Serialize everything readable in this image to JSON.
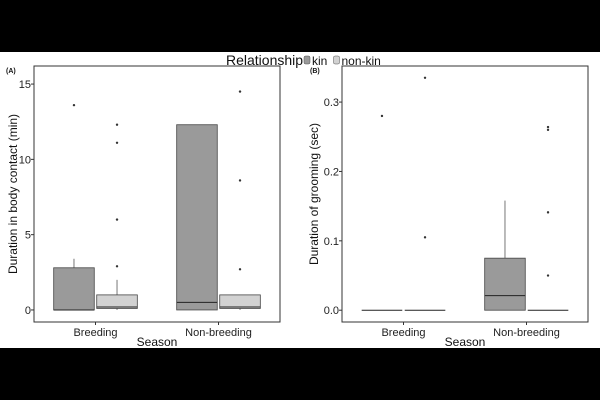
{
  "chart_data": {
    "type": "boxplot",
    "legend": {
      "title": "Relationship",
      "placement": "top-center",
      "entries": [
        {
          "label": "kin",
          "color": "#9a9a9a"
        },
        {
          "label": "non-kin",
          "color": "#d2d2d2"
        }
      ]
    },
    "panels": [
      {
        "id": "A",
        "panel_label": "(A)",
        "xlabel": "Season",
        "ylabel": "Duration in body contact (min)",
        "ylim": [
          -0.8,
          16.2
        ],
        "yticks": [
          0,
          5,
          10,
          15
        ],
        "categories": [
          "Breeding",
          "Non-breeding"
        ],
        "boxes": [
          {
            "category": "Breeding",
            "group": "kin",
            "min": 0,
            "q1": 0,
            "median": 0,
            "q3": 2.8,
            "max": 3.4,
            "outliers": [
              13.6
            ]
          },
          {
            "category": "Breeding",
            "group": "non-kin",
            "min": 0,
            "q1": 0.1,
            "median": 0.2,
            "q3": 1.0,
            "max": 2.0,
            "outliers": [
              2.9,
              6.0,
              11.1,
              12.3
            ]
          },
          {
            "category": "Non-breeding",
            "group": "kin",
            "min": 0,
            "q1": 0,
            "median": 0.5,
            "q3": 12.3,
            "max": 12.3,
            "outliers": []
          },
          {
            "category": "Non-breeding",
            "group": "non-kin",
            "min": 0,
            "q1": 0.1,
            "median": 0.2,
            "q3": 1.0,
            "max": 1.0,
            "outliers": [
              2.7,
              8.6,
              14.5
            ]
          }
        ]
      },
      {
        "id": "B",
        "panel_label": "(B)",
        "xlabel": "Season",
        "ylabel": "Duration of grooming (sec)",
        "ylim": [
          -0.017,
          0.352
        ],
        "yticks": [
          0.0,
          0.1,
          0.2,
          0.3
        ],
        "ytick_labels": [
          "0.0",
          "0.1",
          "0.2",
          "0.3"
        ],
        "categories": [
          "Breeding",
          "Non-breeding"
        ],
        "boxes": [
          {
            "category": "Breeding",
            "group": "kin",
            "min": 0,
            "q1": 0,
            "median": 0,
            "q3": 0,
            "max": 0,
            "outliers": [
              0.28
            ]
          },
          {
            "category": "Breeding",
            "group": "non-kin",
            "min": 0,
            "q1": 0,
            "median": 0,
            "q3": 0,
            "max": 0,
            "outliers": [
              0.105,
              0.335
            ]
          },
          {
            "category": "Non-breeding",
            "group": "kin",
            "min": 0,
            "q1": 0,
            "median": 0.021,
            "q3": 0.075,
            "max": 0.158,
            "outliers": []
          },
          {
            "category": "Non-breeding",
            "group": "non-kin",
            "min": 0,
            "q1": 0,
            "median": 0,
            "q3": 0,
            "max": 0,
            "outliers": [
              0.05,
              0.141,
              0.26,
              0.264
            ]
          }
        ]
      }
    ],
    "grid": false
  }
}
